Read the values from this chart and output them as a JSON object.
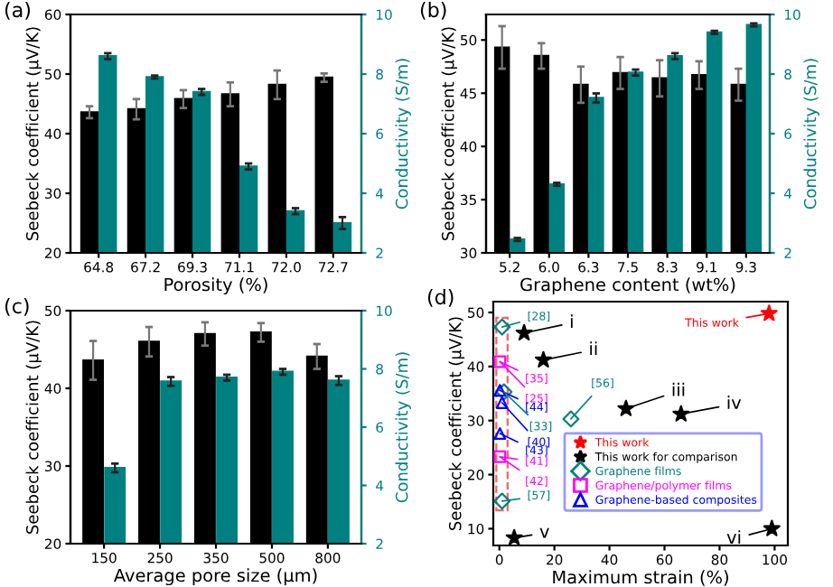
{
  "chart_data": [
    {
      "type": "bar",
      "title": "(a)",
      "categories": [
        "64.8",
        "67.2",
        "69.3",
        "71.1",
        "72.0",
        "72.7"
      ],
      "xlabel": "Porosity (%)",
      "ylabel": "Seebeck coefficient (μV/K)",
      "y2label": "Conductivity (S/m)",
      "series": [
        {
          "color": "#000000",
          "values": [
            43.6,
            44.1,
            45.8,
            46.6,
            48.2,
            49.4
          ],
          "errors": [
            1.0,
            1.7,
            1.5,
            2.0,
            2.4,
            0.7
          ]
        },
        {
          "color": "#008080",
          "axis": "y2",
          "values": [
            8.6,
            7.9,
            7.4,
            4.9,
            3.4,
            3.0
          ],
          "errors": [
            0.1,
            0.05,
            0.1,
            0.1,
            0.1,
            0.2
          ]
        }
      ],
      "ylim": [
        20,
        60
      ],
      "yticks": [
        20,
        30,
        40,
        50,
        60
      ],
      "y2lim": [
        2,
        10
      ],
      "y2ticks": [
        2,
        4,
        6,
        8,
        10
      ]
    },
    {
      "type": "bar",
      "title": "(b)",
      "categories": [
        "5.2",
        "6.0",
        "6.3",
        "7.5",
        "8.3",
        "9.1",
        "9.3"
      ],
      "xlabel": "Graphene content (wt%)",
      "ylabel": "Seebeck coefficient (μV/K)",
      "y2label": "Conductivity (S/m)",
      "series": [
        {
          "color": "#000000",
          "values": [
            49.3,
            48.5,
            45.8,
            46.9,
            46.4,
            46.7,
            45.8
          ],
          "errors": [
            2.0,
            1.2,
            1.7,
            1.5,
            1.7,
            1.3,
            1.5
          ]
        },
        {
          "color": "#008080",
          "axis": "y2",
          "values": [
            2.45,
            4.3,
            7.2,
            8.05,
            8.6,
            9.4,
            9.65
          ],
          "errors": [
            0.05,
            0.05,
            0.15,
            0.1,
            0.1,
            0.05,
            0.05
          ]
        }
      ],
      "ylim": [
        30,
        52.4
      ],
      "yticks": [
        30,
        35,
        40,
        45,
        50
      ],
      "y2lim": [
        2,
        10
      ],
      "y2ticks": [
        2,
        4,
        6,
        8,
        10
      ]
    },
    {
      "type": "bar",
      "title": "(c)",
      "categories": [
        "150",
        "250",
        "350",
        "500",
        "800"
      ],
      "xlabel": "Average pore size (μm)",
      "ylabel": "Seebeck coefficient (μV/K)",
      "y2label": "Conductivity (S/m)",
      "series": [
        {
          "color": "#000000",
          "values": [
            43.6,
            46.0,
            47.0,
            47.2,
            44.1
          ],
          "errors": [
            2.5,
            1.9,
            1.5,
            1.2,
            1.6
          ]
        },
        {
          "color": "#008080",
          "axis": "y2",
          "values": [
            4.6,
            7.57,
            7.7,
            7.9,
            7.6
          ],
          "errors": [
            0.15,
            0.15,
            0.1,
            0.1,
            0.15
          ]
        }
      ],
      "ylim": [
        20,
        50
      ],
      "yticks": [
        20,
        30,
        40,
        50
      ],
      "y2lim": [
        2,
        10
      ],
      "y2ticks": [
        2,
        4,
        6,
        8,
        10
      ]
    },
    {
      "type": "scatter",
      "title": "(d)",
      "xlabel": "Maximum strain (%)",
      "ylabel": "Seebeck coefficient (μV/K)",
      "legend": "bottom right",
      "series": [
        {
          "name": "This work",
          "color": "#ff0000",
          "marker": "star",
          "x": [
            98
          ],
          "values": [
            49.8
          ]
        },
        {
          "name": "This work for comparison",
          "color": "#000000",
          "marker": "star",
          "x": [
            9,
            16,
            46,
            66,
            5.4,
            99
          ],
          "values": [
            46.2,
            41.2,
            32.2,
            31.2,
            8.3,
            10
          ]
        },
        {
          "name": "Graphene films",
          "color": "#008080",
          "marker": "diamond",
          "x": [
            1,
            1.7,
            26,
            1
          ],
          "values": [
            47.3,
            35.3,
            30.3,
            15.1
          ]
        },
        {
          "name": "Graphene/polymer films",
          "color": "#ff00ff",
          "marker": "square",
          "x": [
            0.2,
            0.2
          ],
          "values": [
            40.9,
            23.3
          ]
        },
        {
          "name": "Graphene-based composites",
          "color": "#0000ff",
          "marker": "triangle",
          "x": [
            0.2,
            1,
            0.2
          ],
          "values": [
            35.6,
            33.3,
            27.6
          ]
        }
      ],
      "annotations": [
        {
          "text": "This work",
          "x": 98,
          "y": 49.8
        },
        {
          "text": "i",
          "x": 9,
          "y": 46.2
        },
        {
          "text": "ii",
          "x": 16,
          "y": 41.2
        },
        {
          "text": "iii",
          "x": 46,
          "y": 32.2
        },
        {
          "text": "iv",
          "x": 66,
          "y": 31.2
        },
        {
          "text": "v",
          "x": 5.4,
          "y": 8.3
        },
        {
          "text": "vi",
          "x": 99,
          "y": 10
        },
        {
          "text": "[28]",
          "x": 1,
          "y": 47.3
        },
        {
          "text": "[33]",
          "x": 1.7,
          "y": 35.3
        },
        {
          "text": "[56]",
          "x": 26,
          "y": 30.3
        },
        {
          "text": "[57]",
          "x": 1,
          "y": 15.1
        },
        {
          "text": "[35]",
          "x": 0.2,
          "y": 40.9
        },
        {
          "text": "[25]",
          "x": 0.2,
          "y": 40.9
        },
        {
          "text": "[41]",
          "x": 0.2,
          "y": 23.3
        },
        {
          "text": "[42]",
          "x": 0.2,
          "y": 23.3
        },
        {
          "text": "[44]",
          "x": 0.2,
          "y": 35.6
        },
        {
          "text": "[40]",
          "x": 1,
          "y": 33.3
        },
        {
          "text": "[43]",
          "x": 0.2,
          "y": 27.6
        }
      ],
      "xlim": [
        -2.2,
        104.8
      ],
      "xticks": [
        0,
        20,
        40,
        60,
        80,
        100
      ],
      "ylim": [
        6.9,
        52
      ],
      "yticks": [
        10,
        20,
        30,
        40,
        50
      ]
    }
  ]
}
